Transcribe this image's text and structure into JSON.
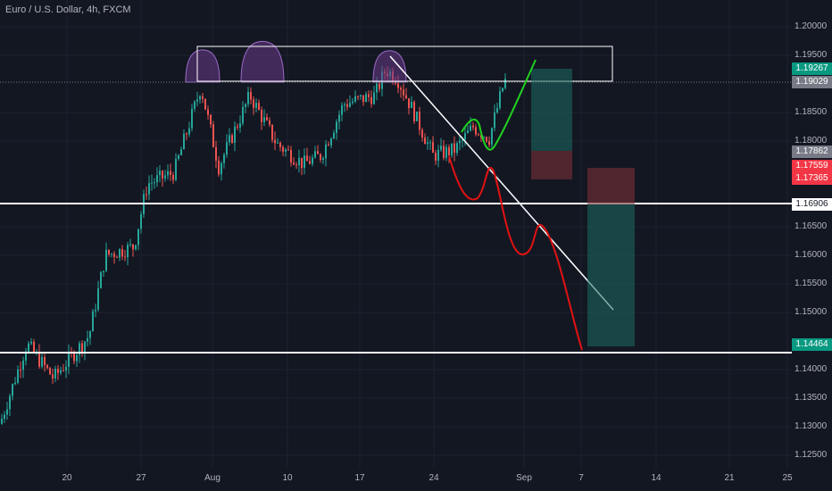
{
  "header": {
    "symbol_title": "Euro / U.S. Dollar, 4h, FXCM"
  },
  "price_axis": {
    "ticks": [
      "1.20000",
      "1.19500",
      "1.18500",
      "1.18000",
      "1.16500",
      "1.16000",
      "1.15500",
      "1.15000",
      "1.14000",
      "1.13500",
      "1.13000",
      "1.12500"
    ]
  },
  "time_axis": {
    "ticks": [
      "20",
      "27",
      "Aug",
      "10",
      "17",
      "24",
      "Sep",
      "7",
      "14",
      "21",
      "25"
    ]
  },
  "price_tags": [
    {
      "label": "1.19267",
      "color": "#089981"
    },
    {
      "label": "1.19029",
      "color": "#787b86"
    },
    {
      "label": "1.17862",
      "color": "#787b86"
    },
    {
      "label": "1.17559",
      "color": "#f23645"
    },
    {
      "label": "1.17365",
      "color": "#f23645"
    },
    {
      "label": "1.16906",
      "color": "#ffffff"
    },
    {
      "label": "1.14464",
      "color": "#089981"
    }
  ],
  "colors": {
    "background": "#131722",
    "up_candle": "#26a69a",
    "down_candle": "#ef5350",
    "grid": "#1e222d",
    "projection_up": "#1fd21f",
    "projection_down": "#e31212",
    "pattern_fill": "#6a3a8a"
  }
}
